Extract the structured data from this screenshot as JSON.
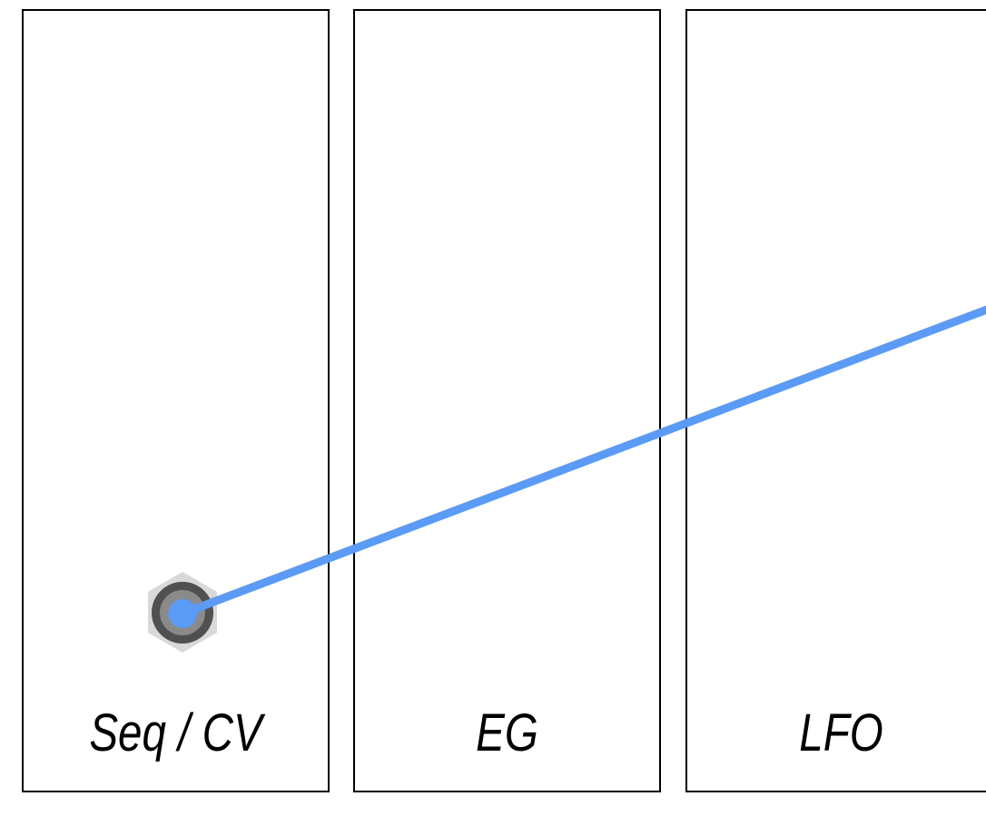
{
  "modules": [
    {
      "id": "seq-cv",
      "label": "Seq / CV"
    },
    {
      "id": "eg",
      "label": "EG"
    },
    {
      "id": "lfo",
      "label": "LFO"
    }
  ],
  "colors": {
    "cable": "#5b9af5",
    "jack_outer": "#d9d9d9",
    "jack_ring": "#505050",
    "jack_inner": "#8a8a8a",
    "border": "#000000",
    "background": "#ffffff"
  },
  "icons": {
    "jack": "hex-jack-icon"
  }
}
